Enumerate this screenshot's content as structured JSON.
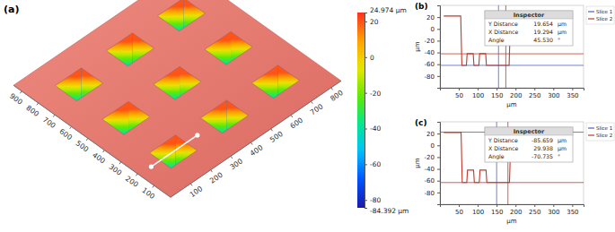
{
  "chart_data": [
    {
      "type": "surface",
      "panel_label": "(a)",
      "xlim": [
        0,
        850
      ],
      "xticks": [
        100,
        200,
        300,
        400,
        500,
        600,
        700,
        800
      ],
      "ylim": [
        0,
        950
      ],
      "yticks": [
        100,
        200,
        300,
        400,
        500,
        600,
        700,
        800,
        900
      ],
      "surface_height": 20,
      "pits": {
        "x": [
          170,
          425,
          680
        ],
        "y": [
          190,
          475,
          760
        ],
        "size": 130,
        "floor": -62
      },
      "slice_line": {
        "x": [
          60,
          290
        ],
        "y": [
          190,
          190
        ]
      },
      "colorbar": {
        "range": [
          -84.392,
          24.974
        ],
        "ticks": [
          {
            "value": 24.974,
            "label": "24.974 µm"
          },
          20,
          0,
          -20,
          -40,
          -60,
          -80,
          {
            "value": -84.392,
            "label": "-84.392 µm"
          }
        ]
      }
    },
    {
      "type": "line",
      "panel_label": "(b)",
      "x_label": "µm",
      "y_label": "µm",
      "xlim": [
        0,
        380
      ],
      "xticks": [
        50,
        100,
        150,
        200,
        250,
        300,
        350
      ],
      "ylim": [
        -100,
        40
      ],
      "yticks": [
        20,
        0,
        -20,
        -40,
        -60,
        -80
      ],
      "legend": "right",
      "series": [
        {
          "name": "Slice 1",
          "color": "#4a63c8",
          "cursor_x": 155,
          "cursor_y": -61.9
        },
        {
          "name": "Slice 2",
          "color": "#c0392b",
          "cursor_x": 174.294,
          "cursor_y": -42.246,
          "x": [
            10,
            55,
            58,
            70,
            72,
            88,
            90,
            103,
            105,
            121,
            123,
            183,
            187,
            255
          ],
          "values": [
            22,
            22,
            -62,
            -62,
            -42,
            -42,
            -62,
            -62,
            -42,
            -42,
            -62,
            -62,
            22,
            22
          ]
        }
      ],
      "inspector": {
        "title": "Inspector",
        "rows": [
          {
            "label": "Y Distance",
            "value": "19.654",
            "unit": "µm"
          },
          {
            "label": "X Distance",
            "value": "19.294",
            "unit": "µm"
          },
          {
            "label": "Angle",
            "value": "45.530",
            "unit": "°"
          }
        ]
      }
    },
    {
      "type": "line",
      "panel_label": "(c)",
      "x_label": "µm",
      "y_label": "µm",
      "xlim": [
        0,
        380
      ],
      "xticks": [
        50,
        100,
        150,
        200,
        250,
        300,
        350
      ],
      "ylim": [
        -100,
        40
      ],
      "yticks": [
        20,
        0,
        -20,
        -40,
        -60,
        -80
      ],
      "legend": "right",
      "series": [
        {
          "name": "Slice 1",
          "color": "#4a63c8",
          "cursor_x": 150,
          "cursor_y": 22.5
        },
        {
          "name": "Slice 2",
          "color": "#c0392b",
          "cursor_x": 179.938,
          "cursor_y": -63.159,
          "x": [
            10,
            56,
            59,
            71,
            73,
            89,
            91,
            104,
            106,
            122,
            124,
            184,
            188,
            258
          ],
          "values": [
            22,
            22,
            -63,
            -63,
            -42,
            -42,
            -63,
            -63,
            -42,
            -42,
            -63,
            -63,
            22,
            22
          ]
        }
      ],
      "inspector": {
        "title": "Inspector",
        "rows": [
          {
            "label": "Y Distance",
            "value": "-85.659",
            "unit": "µm"
          },
          {
            "label": "X Distance",
            "value": "29.938",
            "unit": "µm"
          },
          {
            "label": "Angle",
            "value": "-70.735",
            "unit": "°"
          }
        ]
      }
    }
  ]
}
